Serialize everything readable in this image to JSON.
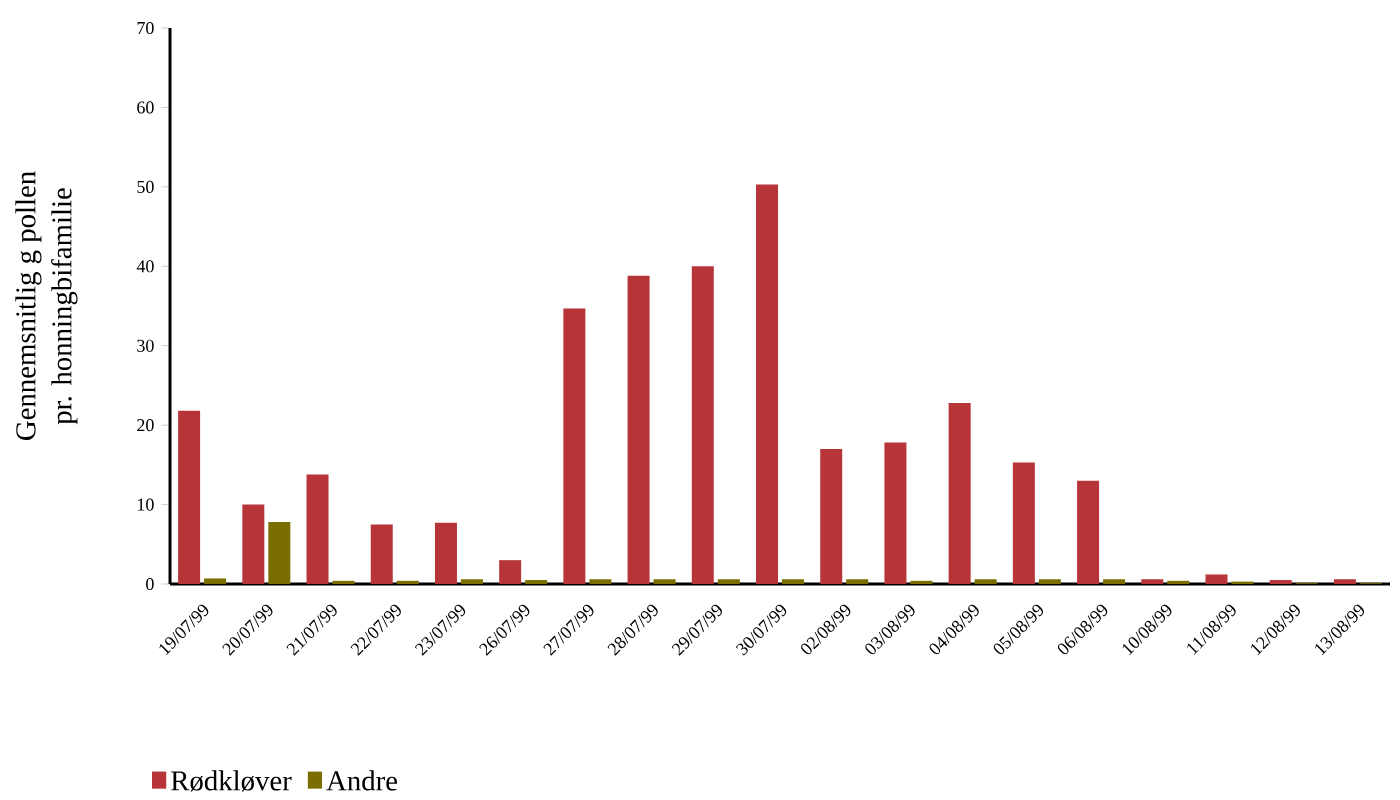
{
  "chart_data": {
    "type": "bar",
    "ylabel": "Gennemsnitlig g pollen\npr. honningbifamilie",
    "categories": [
      "19/07/99",
      "20/07/99",
      "21/07/99",
      "22/07/99",
      "23/07/99",
      "26/07/99",
      "27/07/99",
      "28/07/99",
      "29/07/99",
      "30/07/99",
      "02/08/99",
      "03/08/99",
      "04/08/99",
      "05/08/99",
      "06/08/99",
      "10/08/99",
      "11/08/99",
      "12/08/99",
      "13/08/99"
    ],
    "series": [
      {
        "name": "Rødkløver",
        "color": "#b73538",
        "values": [
          21.8,
          10,
          13.8,
          7.5,
          7.7,
          3,
          34.7,
          38.8,
          40,
          50.3,
          17,
          17.8,
          22.8,
          15.3,
          13,
          0.6,
          1.2,
          0.5,
          0.6
        ]
      },
      {
        "name": "Andre",
        "color": "#7a6e00",
        "values": [
          0.7,
          7.8,
          0.4,
          0.4,
          0.6,
          0.5,
          0.6,
          0.6,
          0.6,
          0.6,
          0.6,
          0.4,
          0.6,
          0.6,
          0.6,
          0.4,
          0.3,
          0.1,
          0.1
        ]
      }
    ],
    "ylim": [
      0,
      70
    ],
    "yticks": [
      0,
      10,
      20,
      30,
      40,
      50,
      60,
      70
    ],
    "legend": "bottom left",
    "grid": false
  }
}
